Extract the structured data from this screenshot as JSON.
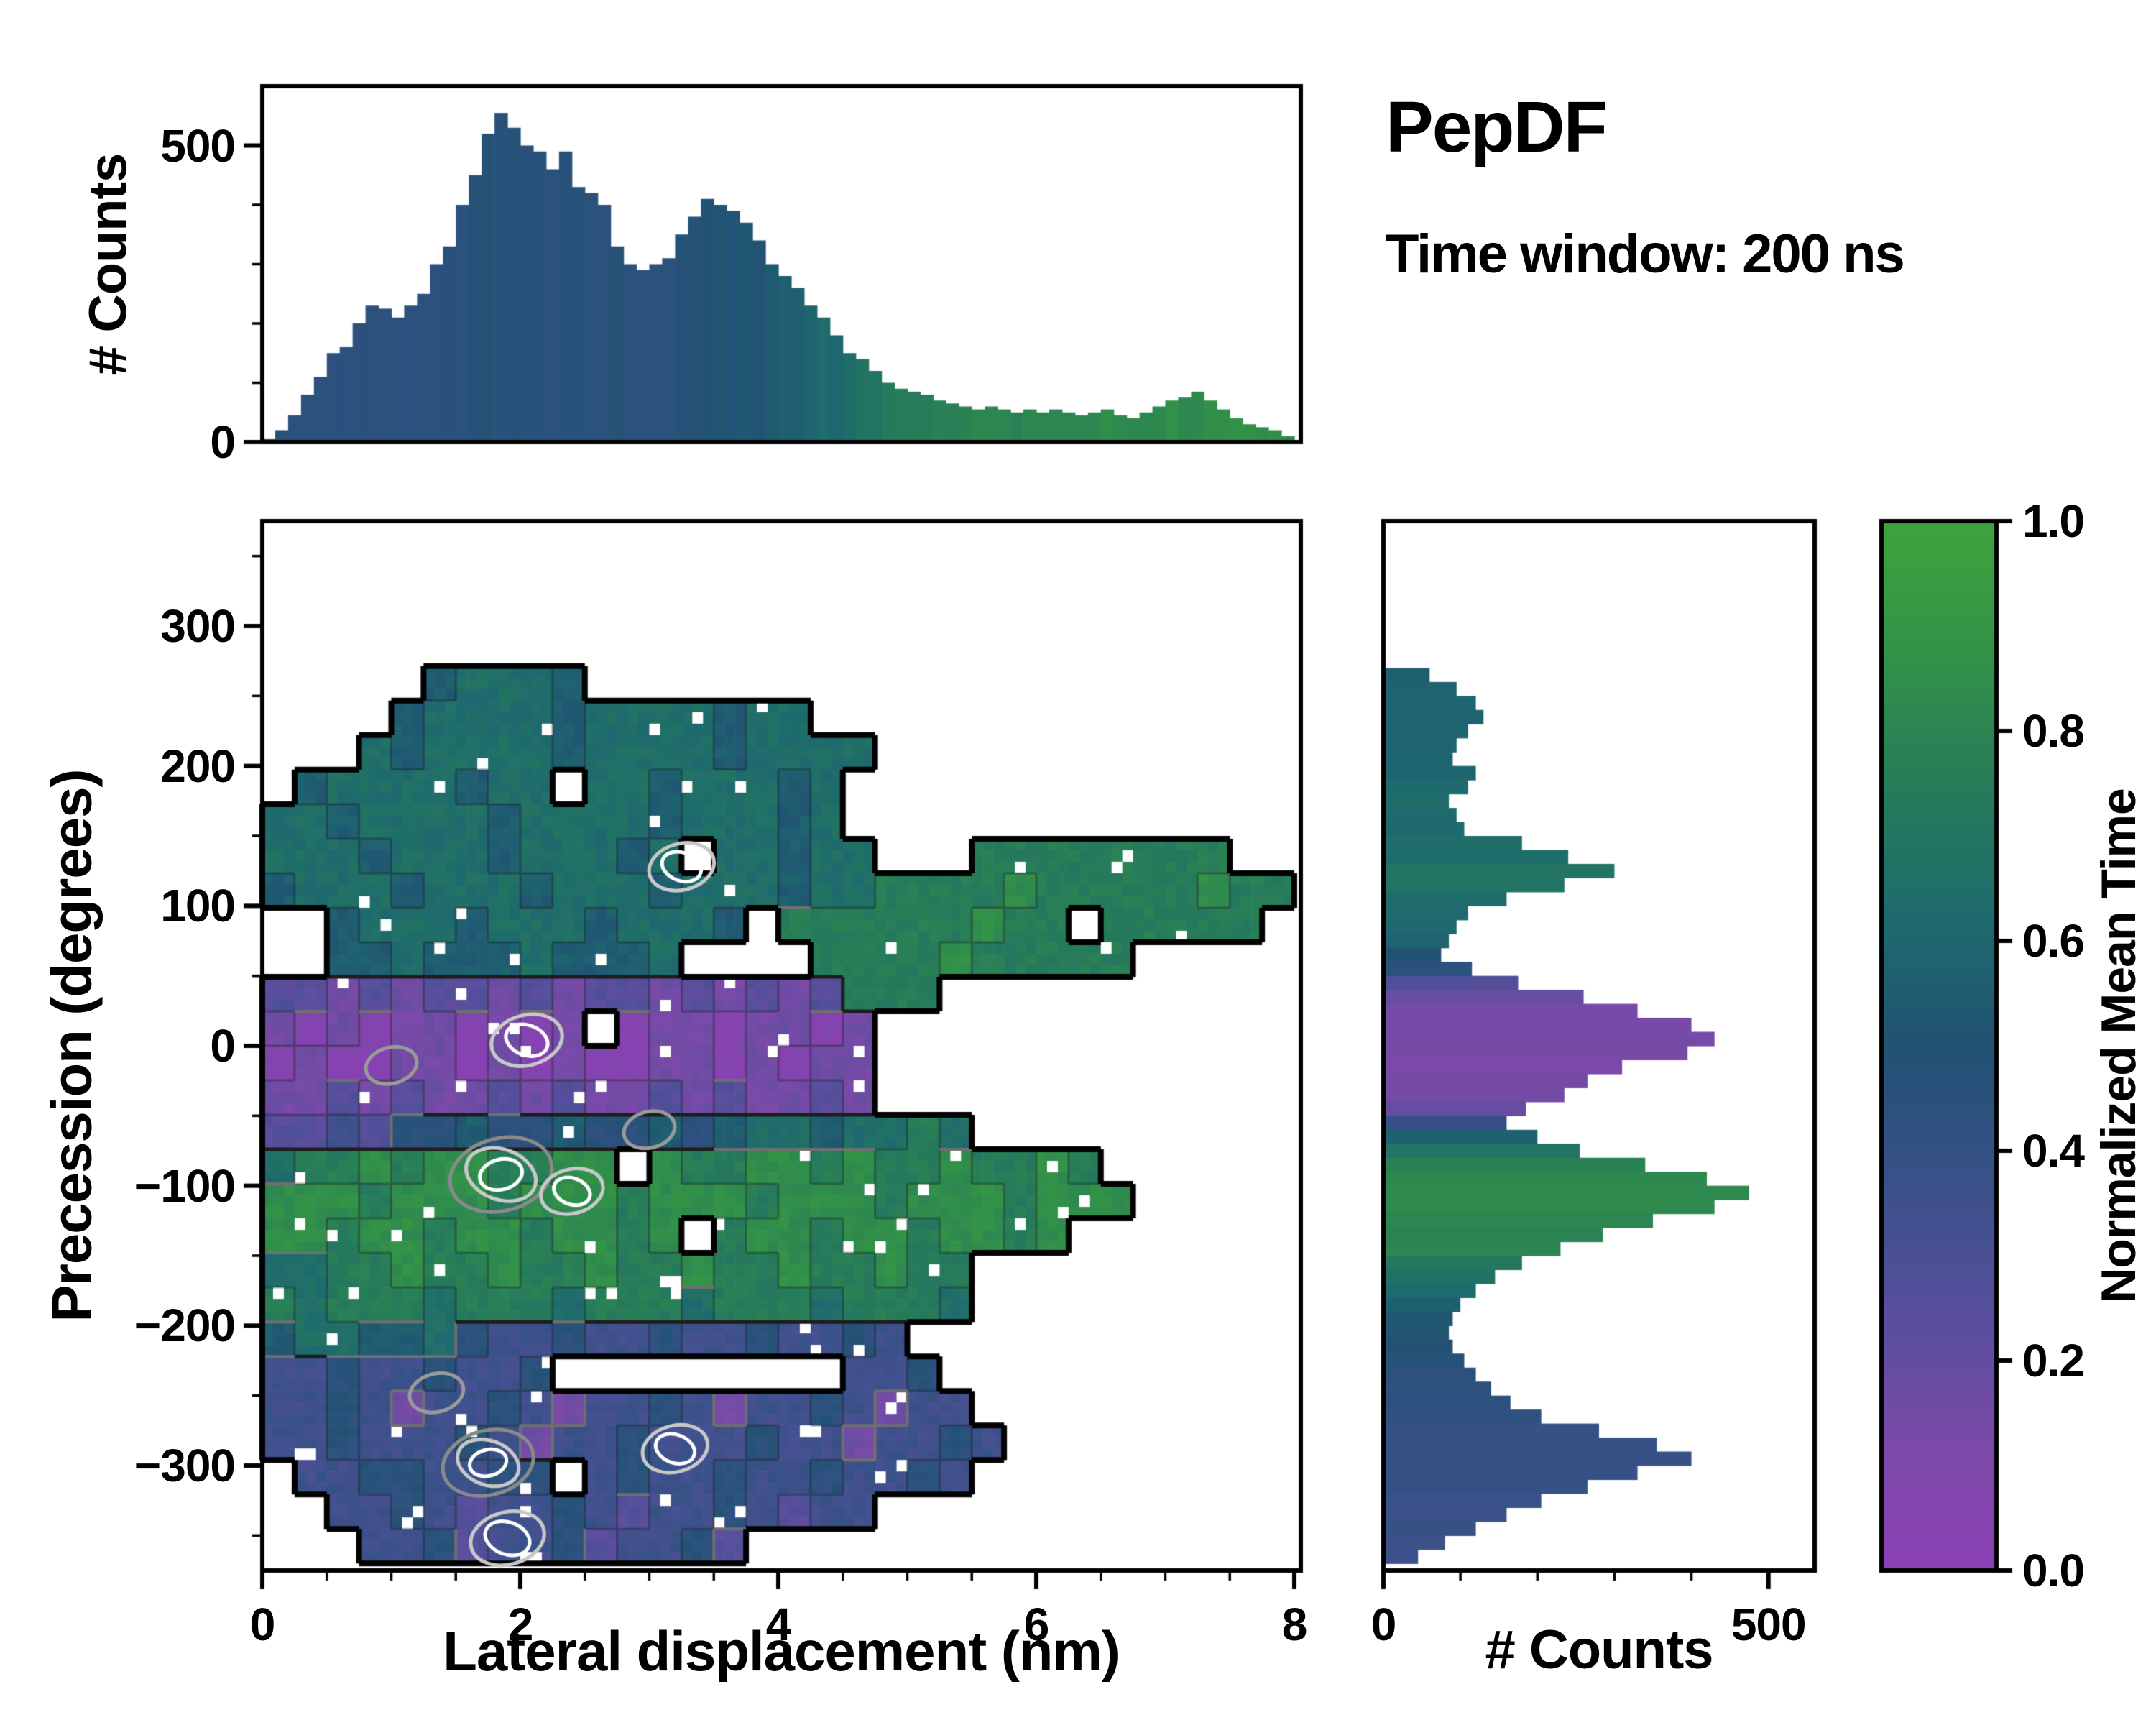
{
  "title": {
    "name": "PepDF",
    "subtitle": "Time window: 200 ns"
  },
  "labels": {
    "xlabel": "Lateral displacement (nm)",
    "ylabel": "Precession (degrees)",
    "top_ylabel": "# Counts",
    "right_xlabel": "# Counts",
    "cbar_label": "Normalized Mean Time"
  },
  "colors": {
    "background": "#ffffff",
    "frame": "#000000",
    "text": "#000000"
  },
  "colormap": {
    "name": "purple-blue-green",
    "stops": [
      [
        0.0,
        "#8b3fb4"
      ],
      [
        0.12,
        "#7a4aa8"
      ],
      [
        0.25,
        "#564f9c"
      ],
      [
        0.4,
        "#335184"
      ],
      [
        0.5,
        "#215273"
      ],
      [
        0.62,
        "#1e6a6e"
      ],
      [
        0.75,
        "#277c59"
      ],
      [
        0.88,
        "#339347"
      ],
      [
        1.0,
        "#3fa33c"
      ]
    ]
  },
  "axes": {
    "main": {
      "xlim": [
        0,
        8.05
      ],
      "ylim": [
        -375,
        375
      ],
      "xtick_vals": [
        0,
        2,
        4,
        6,
        8
      ],
      "xtick_labels": [
        "0",
        "2",
        "4",
        "6",
        "8"
      ],
      "ytick_vals": [
        300,
        200,
        100,
        0,
        -100,
        -200,
        -300
      ],
      "ytick_labels": [
        "300",
        "200",
        "100",
        "0",
        "−100",
        "−200",
        "−300"
      ]
    },
    "top": {
      "ylim": [
        0,
        600
      ],
      "ytick_vals": [
        0,
        500
      ],
      "ytick_labels": [
        "0",
        "500"
      ],
      "minor": [
        100,
        200,
        300,
        400
      ]
    },
    "right": {
      "xlim": [
        0,
        560
      ],
      "xtick_vals": [
        0,
        500
      ],
      "xtick_labels": [
        "0",
        "500"
      ],
      "minor": [
        100,
        200,
        300,
        400
      ]
    },
    "colorbar": {
      "tick_vals": [
        0,
        0.2,
        0.4,
        0.6,
        0.8,
        1.0
      ],
      "tick_labels": [
        "0.0",
        "0.2",
        "0.4",
        "0.6",
        "0.8",
        "1.0"
      ]
    }
  },
  "chart_data": [
    {
      "type": "heatmap",
      "panel": "main",
      "xlabel": "Lateral displacement (nm)",
      "ylabel": "Precession (degrees)",
      "value_label": "Normalized Mean Time",
      "x0": 0,
      "dx": 0.25,
      "y_top": 370,
      "y_bottom": -370,
      "encoding": "each char: '.'=empty cell, digit d = normalized mean time (d+0.5)/10",
      "grid": [
        "................................",
        "................................",
        "................................",
        "................................",
        ".....56665......................",
        "....5666656666566...............",
        "...6566665666656666.............",
        ".56666566.66566656..............",
        "665666656666566656..............",
        "6665666566656.66566...77777777..",
        "56665666566656665667777877777877",
        "..5666566656665.777777877.77777.",
        "..55655565556....7777877777.....",
        "221212212122121212777...........",
        "1010110101.01101101.............",
        "0100110101001101011.............",
        "1121211212112121121.............",
        "2232445445445456656676..........",
        "67787887788.87788787787787......",
        "888788878887888788878887888.....",
        "8878878878878.78878878878.......",
        "6677877877877877877877..........",
        "7677767776777677767776..........",
        "56655643343343343343............",
        "334334334.........334...........",
        "3343133431334313343133..........",
        "33433343133433343313343.........",
        ".33443344.343343343343..........",
        "..33432334323343233.............",
        "...334233423342................."
      ],
      "hotspots": [
        {
          "x": 3.25,
          "y": 128,
          "rings": [
            46,
            28
          ]
        },
        {
          "x": 1.85,
          "y": -92,
          "rings": [
            72,
            50,
            30
          ]
        },
        {
          "x": 2.4,
          "y": -104,
          "rings": [
            44,
            26
          ]
        },
        {
          "x": 2.05,
          "y": 4,
          "rings": [
            50,
            30
          ]
        },
        {
          "x": 1.0,
          "y": -14,
          "rings": [
            36
          ]
        },
        {
          "x": 3.0,
          "y": -60,
          "rings": [
            36
          ]
        },
        {
          "x": 1.75,
          "y": -298,
          "rings": [
            64,
            44,
            26
          ]
        },
        {
          "x": 3.2,
          "y": -288,
          "rings": [
            46,
            28
          ]
        },
        {
          "x": 1.9,
          "y": -352,
          "rings": [
            52,
            32
          ]
        },
        {
          "x": 1.35,
          "y": -248,
          "rings": [
            38
          ]
        }
      ]
    },
    {
      "type": "bar",
      "panel": "top",
      "orientation": "vertical",
      "xlabel": "Lateral displacement (nm)",
      "ylabel": "# Counts",
      "ylim": [
        0,
        600
      ],
      "x0": 0,
      "dx": 0.1,
      "values": [
        5,
        20,
        45,
        80,
        110,
        150,
        160,
        200,
        230,
        225,
        210,
        230,
        250,
        300,
        330,
        400,
        450,
        520,
        555,
        530,
        500,
        490,
        460,
        490,
        430,
        420,
        400,
        330,
        300,
        290,
        300,
        310,
        350,
        380,
        410,
        400,
        390,
        370,
        340,
        300,
        280,
        260,
        230,
        210,
        180,
        150,
        140,
        120,
        100,
        90,
        85,
        80,
        70,
        65,
        60,
        55,
        60,
        55,
        50,
        55,
        50,
        55,
        50,
        45,
        50,
        55,
        45,
        40,
        50,
        60,
        70,
        75,
        85,
        70,
        55,
        40,
        30,
        25,
        20,
        10
      ],
      "mean_time_stops": [
        [
          0,
          0.44
        ],
        [
          3.2,
          0.46
        ],
        [
          3.9,
          0.52
        ],
        [
          4.4,
          0.62
        ],
        [
          5.0,
          0.75
        ],
        [
          5.6,
          0.8
        ],
        [
          6.5,
          0.83
        ],
        [
          8.05,
          0.86
        ]
      ]
    },
    {
      "type": "bar",
      "panel": "right",
      "orientation": "horizontal",
      "xlabel": "# Counts",
      "ylabel": "Precession (degrees)",
      "xlim": [
        0,
        560
      ],
      "y0": 365,
      "dy": -10,
      "values": [
        0,
        0,
        0,
        0,
        0,
        0,
        0,
        0,
        0,
        0,
        60,
        95,
        120,
        130,
        110,
        95,
        90,
        120,
        110,
        85,
        95,
        105,
        180,
        240,
        300,
        235,
        160,
        110,
        95,
        85,
        75,
        115,
        175,
        260,
        330,
        400,
        430,
        395,
        310,
        265,
        235,
        185,
        160,
        200,
        255,
        340,
        420,
        475,
        430,
        350,
        285,
        230,
        180,
        145,
        120,
        100,
        90,
        85,
        90,
        105,
        120,
        140,
        165,
        205,
        280,
        355,
        400,
        330,
        265,
        205,
        160,
        120,
        80,
        45
      ],
      "mean_time_stops": [
        [
          -370,
          0.36
        ],
        [
          -300,
          0.38
        ],
        [
          -250,
          0.42
        ],
        [
          -215,
          0.48
        ],
        [
          -185,
          0.55
        ],
        [
          -160,
          0.72
        ],
        [
          -140,
          0.8
        ],
        [
          -100,
          0.84
        ],
        [
          -80,
          0.78
        ],
        [
          -60,
          0.5
        ],
        [
          -45,
          0.2
        ],
        [
          -30,
          0.13
        ],
        [
          25,
          0.12
        ],
        [
          40,
          0.2
        ],
        [
          55,
          0.45
        ],
        [
          75,
          0.58
        ],
        [
          100,
          0.62
        ],
        [
          120,
          0.68
        ],
        [
          145,
          0.64
        ],
        [
          200,
          0.6
        ],
        [
          270,
          0.58
        ]
      ]
    },
    {
      "type": "colorbar",
      "label": "Normalized Mean Time",
      "range": [
        0,
        1
      ],
      "ticks": [
        "0.0",
        "0.2",
        "0.4",
        "0.6",
        "0.8",
        "1.0"
      ]
    }
  ]
}
